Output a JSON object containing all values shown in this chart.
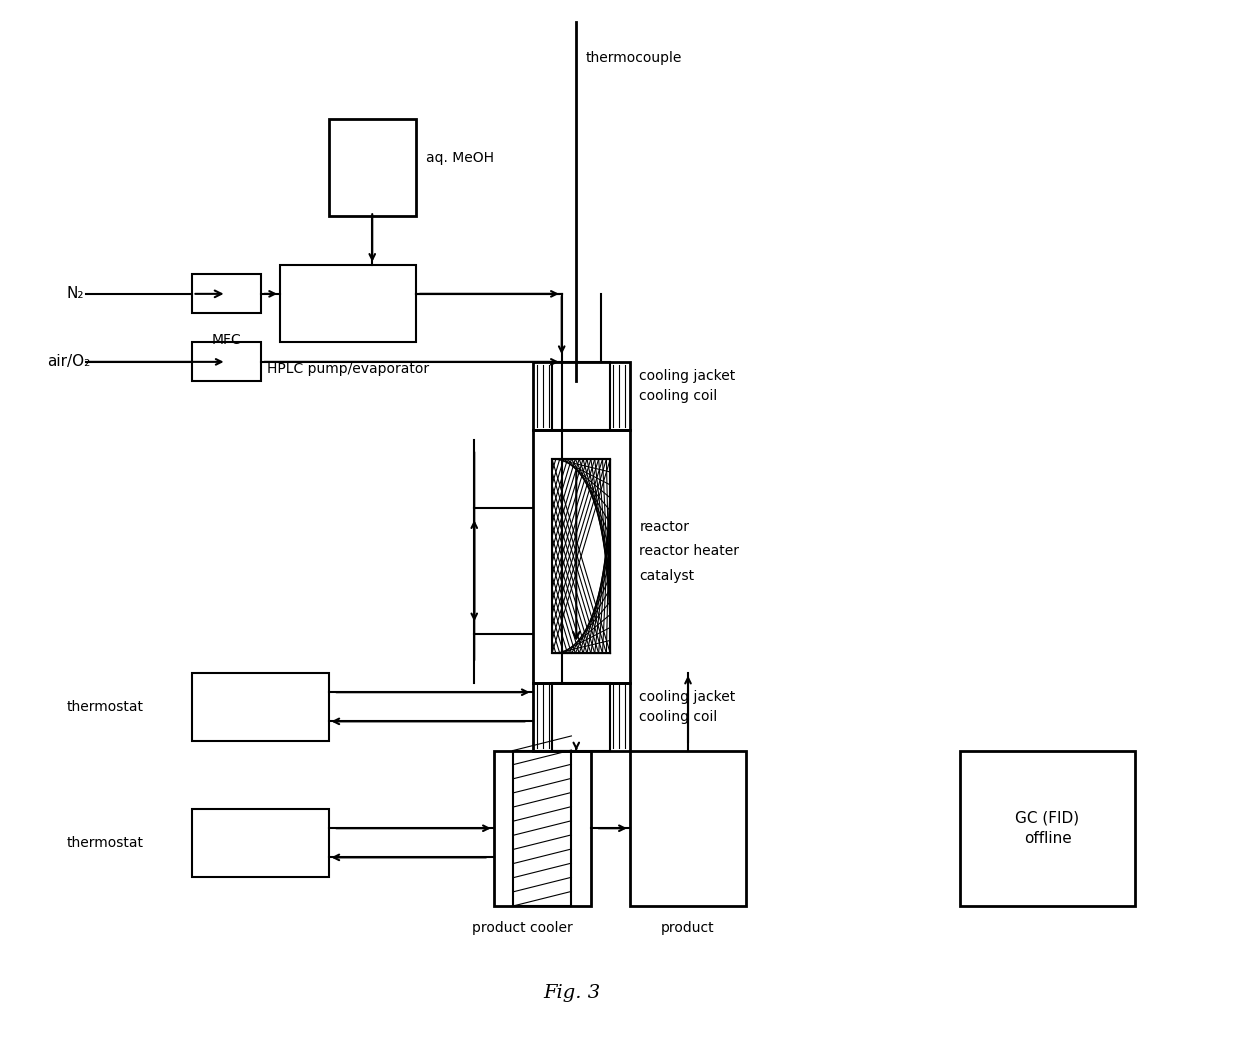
{
  "title": "Fig. 3",
  "background_color": "#ffffff",
  "text_color": "#000000",
  "line_color": "#000000",
  "fig_width": 12.4,
  "fig_height": 10.57,
  "labels": {
    "thermocouple": "thermocouple",
    "aq_meoh": "aq. MeOH",
    "n2": "N₂",
    "air_o2": "air/O₂",
    "mfc": "MFC",
    "hplc": "HPLC pump/evaporator",
    "cooling_jacket_top": "cooling jacket",
    "cooling_coil_top": "cooling coil",
    "reactor": "reactor",
    "reactor_heater": "reactor heater",
    "catalyst": "catalyst",
    "cooling_jacket_bot": "cooling jacket",
    "cooling_coil_bot": "cooling coil",
    "thermostat1": "thermostat",
    "thermostat2": "thermostat",
    "product_cooler": "product cooler",
    "product": "product",
    "gc": "GC (FID)\noffline",
    "fig_label": "Fig. 3"
  }
}
